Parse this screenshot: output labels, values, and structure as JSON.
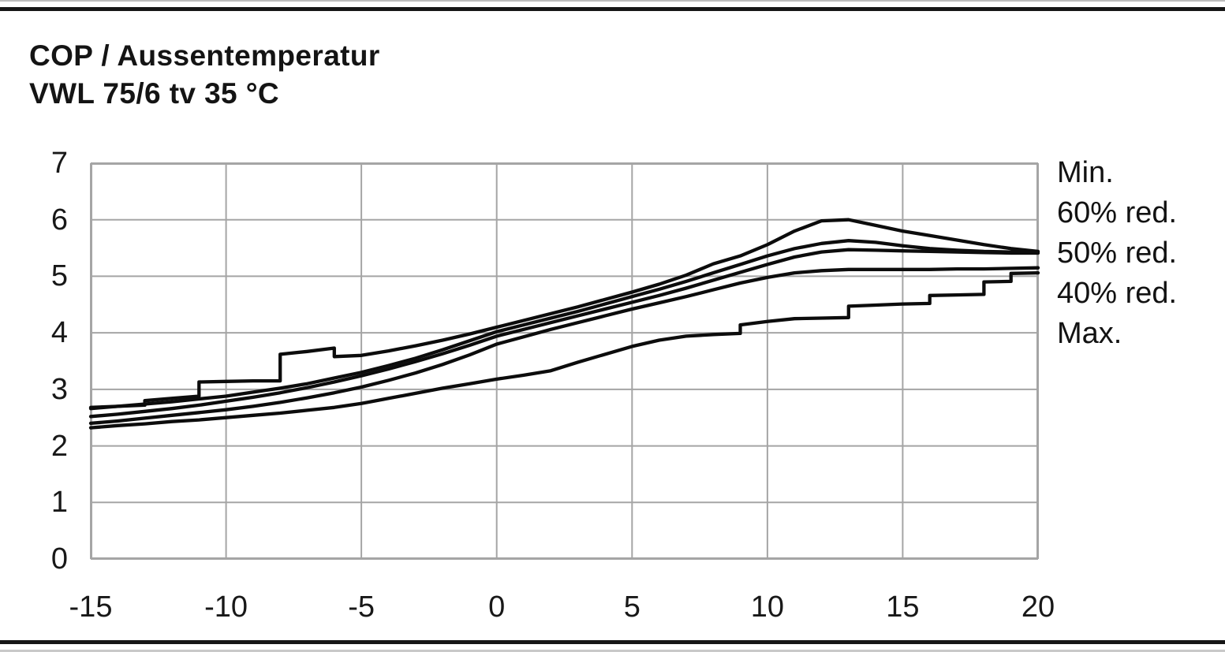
{
  "chart_data": {
    "type": "line",
    "title": "COP / Aussentemperatur",
    "subtitle": "VWL 75/6 tv 35 °C",
    "xlabel": "",
    "ylabel": "",
    "xlim": [
      -15,
      20
    ],
    "ylim": [
      0,
      7
    ],
    "x_ticks": [
      -15,
      -10,
      -5,
      0,
      5,
      10,
      15,
      20
    ],
    "y_ticks": [
      0,
      1,
      2,
      3,
      4,
      5,
      6,
      7
    ],
    "grid": true,
    "legend_position": "right",
    "colors": {
      "curve": "#0c0c0c",
      "grid": "#a5a5a5",
      "text": "#141414"
    },
    "series": [
      {
        "name": "Min.",
        "points": [
          [
            -15,
            2.68
          ],
          [
            -14,
            2.7
          ],
          [
            -13,
            2.72
          ],
          [
            -13,
            2.8
          ],
          [
            -12,
            2.84
          ],
          [
            -11,
            2.88
          ],
          [
            -11,
            3.13
          ],
          [
            -10,
            3.14
          ],
          [
            -9,
            3.15
          ],
          [
            -8,
            3.15
          ],
          [
            -8,
            3.62
          ],
          [
            -7,
            3.67
          ],
          [
            -6,
            3.73
          ],
          [
            -6,
            3.58
          ],
          [
            -5,
            3.6
          ],
          [
            -4,
            3.68
          ],
          [
            -3,
            3.77
          ],
          [
            -2,
            3.87
          ],
          [
            -1,
            3.98
          ],
          [
            0,
            4.1
          ],
          [
            1,
            4.22
          ],
          [
            2,
            4.34
          ],
          [
            3,
            4.46
          ],
          [
            4,
            4.59
          ],
          [
            5,
            4.72
          ],
          [
            6,
            4.86
          ],
          [
            7,
            5.02
          ],
          [
            8,
            5.22
          ],
          [
            9,
            5.36
          ],
          [
            10,
            5.56
          ],
          [
            11,
            5.8
          ],
          [
            12,
            5.98
          ],
          [
            13,
            6.0
          ],
          [
            14,
            5.9
          ],
          [
            15,
            5.8
          ],
          [
            16,
            5.72
          ],
          [
            17,
            5.64
          ],
          [
            18,
            5.56
          ],
          [
            19,
            5.49
          ],
          [
            20,
            5.44
          ]
        ]
      },
      {
        "name": "60% red.",
        "points": [
          [
            -15,
            2.66
          ],
          [
            -14,
            2.7
          ],
          [
            -13,
            2.74
          ],
          [
            -12,
            2.78
          ],
          [
            -11,
            2.83
          ],
          [
            -10,
            2.88
          ],
          [
            -9,
            2.95
          ],
          [
            -8,
            3.02
          ],
          [
            -7,
            3.1
          ],
          [
            -6,
            3.2
          ],
          [
            -5,
            3.3
          ],
          [
            -4,
            3.42
          ],
          [
            -3,
            3.55
          ],
          [
            -2,
            3.7
          ],
          [
            -1,
            3.86
          ],
          [
            0,
            4.02
          ],
          [
            1,
            4.14
          ],
          [
            2,
            4.26
          ],
          [
            3,
            4.38
          ],
          [
            4,
            4.51
          ],
          [
            5,
            4.64
          ],
          [
            6,
            4.77
          ],
          [
            7,
            4.91
          ],
          [
            8,
            5.06
          ],
          [
            9,
            5.21
          ],
          [
            10,
            5.36
          ],
          [
            11,
            5.49
          ],
          [
            12,
            5.58
          ],
          [
            13,
            5.63
          ],
          [
            14,
            5.6
          ],
          [
            15,
            5.54
          ],
          [
            16,
            5.49
          ],
          [
            17,
            5.46
          ],
          [
            18,
            5.44
          ],
          [
            19,
            5.43
          ],
          [
            20,
            5.43
          ]
        ]
      },
      {
        "name": "50% red.",
        "points": [
          [
            -15,
            2.52
          ],
          [
            -14,
            2.56
          ],
          [
            -13,
            2.61
          ],
          [
            -12,
            2.66
          ],
          [
            -11,
            2.72
          ],
          [
            -10,
            2.79
          ],
          [
            -9,
            2.86
          ],
          [
            -8,
            2.94
          ],
          [
            -7,
            3.03
          ],
          [
            -6,
            3.13
          ],
          [
            -5,
            3.24
          ],
          [
            -4,
            3.36
          ],
          [
            -3,
            3.49
          ],
          [
            -2,
            3.63
          ],
          [
            -1,
            3.78
          ],
          [
            0,
            3.94
          ],
          [
            1,
            4.06
          ],
          [
            2,
            4.18
          ],
          [
            3,
            4.3
          ],
          [
            4,
            4.42
          ],
          [
            5,
            4.54
          ],
          [
            6,
            4.66
          ],
          [
            7,
            4.79
          ],
          [
            8,
            4.93
          ],
          [
            9,
            5.07
          ],
          [
            10,
            5.21
          ],
          [
            11,
            5.34
          ],
          [
            12,
            5.43
          ],
          [
            13,
            5.47
          ],
          [
            14,
            5.46
          ],
          [
            15,
            5.45
          ],
          [
            16,
            5.44
          ],
          [
            17,
            5.43
          ],
          [
            18,
            5.42
          ],
          [
            19,
            5.41
          ],
          [
            20,
            5.41
          ]
        ]
      },
      {
        "name": "40% red.",
        "points": [
          [
            -15,
            2.4
          ],
          [
            -14,
            2.44
          ],
          [
            -13,
            2.49
          ],
          [
            -12,
            2.54
          ],
          [
            -11,
            2.59
          ],
          [
            -10,
            2.64
          ],
          [
            -9,
            2.7
          ],
          [
            -8,
            2.77
          ],
          [
            -7,
            2.85
          ],
          [
            -6,
            2.94
          ],
          [
            -5,
            3.04
          ],
          [
            -4,
            3.16
          ],
          [
            -3,
            3.29
          ],
          [
            -2,
            3.44
          ],
          [
            -1,
            3.61
          ],
          [
            0,
            3.8
          ],
          [
            1,
            3.93
          ],
          [
            2,
            4.06
          ],
          [
            3,
            4.18
          ],
          [
            4,
            4.3
          ],
          [
            5,
            4.42
          ],
          [
            6,
            4.53
          ],
          [
            7,
            4.64
          ],
          [
            8,
            4.76
          ],
          [
            9,
            4.88
          ],
          [
            10,
            4.98
          ],
          [
            11,
            5.06
          ],
          [
            12,
            5.1
          ],
          [
            13,
            5.12
          ],
          [
            14,
            5.12
          ],
          [
            15,
            5.12
          ],
          [
            16,
            5.12
          ],
          [
            17,
            5.13
          ],
          [
            18,
            5.13
          ],
          [
            19,
            5.14
          ],
          [
            20,
            5.15
          ]
        ]
      },
      {
        "name": "Max.",
        "points": [
          [
            -15,
            2.32
          ],
          [
            -14,
            2.36
          ],
          [
            -13,
            2.39
          ],
          [
            -12,
            2.43
          ],
          [
            -11,
            2.46
          ],
          [
            -10,
            2.5
          ],
          [
            -9,
            2.54
          ],
          [
            -8,
            2.58
          ],
          [
            -7,
            2.63
          ],
          [
            -6,
            2.68
          ],
          [
            -5,
            2.75
          ],
          [
            -4,
            2.84
          ],
          [
            -3,
            2.93
          ],
          [
            -2,
            3.02
          ],
          [
            -1,
            3.1
          ],
          [
            0,
            3.18
          ],
          [
            1,
            3.25
          ],
          [
            2,
            3.33
          ],
          [
            3,
            3.48
          ],
          [
            4,
            3.62
          ],
          [
            5,
            3.76
          ],
          [
            6,
            3.87
          ],
          [
            7,
            3.94
          ],
          [
            8,
            3.97
          ],
          [
            9,
            3.99
          ],
          [
            9,
            4.14
          ],
          [
            10,
            4.2
          ],
          [
            11,
            4.25
          ],
          [
            12,
            4.26
          ],
          [
            13,
            4.27
          ],
          [
            13,
            4.47
          ],
          [
            14,
            4.49
          ],
          [
            15,
            4.51
          ],
          [
            16,
            4.52
          ],
          [
            16,
            4.66
          ],
          [
            17,
            4.67
          ],
          [
            18,
            4.68
          ],
          [
            18,
            4.9
          ],
          [
            19,
            4.91
          ],
          [
            19,
            5.05
          ],
          [
            20,
            5.06
          ]
        ]
      }
    ]
  }
}
